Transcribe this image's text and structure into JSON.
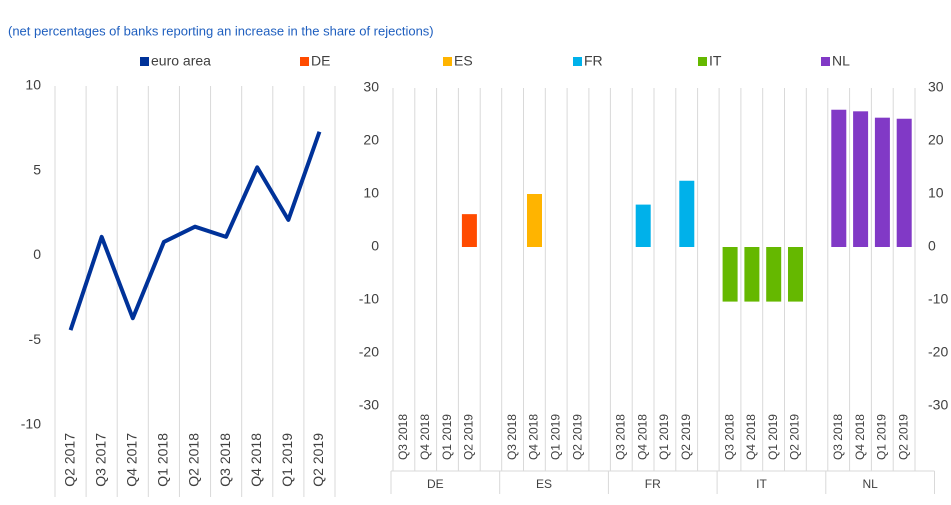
{
  "chart_data": [
    {
      "type": "line",
      "subtitle": "(net percentages of banks reporting an increase in the share of rejections)",
      "categories": [
        "Q2 2017",
        "Q3 2017",
        "Q4 2017",
        "Q1 2018",
        "Q2 2018",
        "Q3 2018",
        "Q4 2018",
        "Q1 2019",
        "Q2 2019"
      ],
      "series": [
        {
          "name": "euro area",
          "color": "#003299",
          "values": [
            -4.4,
            1.1,
            -3.7,
            0.8,
            1.7,
            1.1,
            5.2,
            2.1,
            7.3
          ]
        }
      ],
      "ylim": [
        -10,
        10
      ],
      "yticks": [
        -10,
        -5,
        0,
        5,
        10
      ],
      "grid": "x"
    },
    {
      "type": "bar",
      "categories": [
        "Q3 2018",
        "Q4 2018",
        "Q1 2019",
        "Q2 2019"
      ],
      "series": [
        {
          "name": "DE",
          "color": "#ff4b00",
          "values": [
            0,
            0,
            0,
            6.2
          ]
        },
        {
          "name": "ES",
          "color": "#ffb400",
          "values": [
            0,
            10,
            0,
            0
          ]
        },
        {
          "name": "FR",
          "color": "#00b1ea",
          "values": [
            0,
            8,
            0,
            12.5
          ]
        },
        {
          "name": "IT",
          "color": "#65b800",
          "values": [
            -10.3,
            -10.3,
            -10.3,
            -10.3
          ]
        },
        {
          "name": "NL",
          "color": "#8139c6",
          "values": [
            25.9,
            25.6,
            24.4,
            24.2
          ]
        }
      ],
      "ylim": [
        -30,
        30
      ],
      "yticks": [
        -30,
        -20,
        -10,
        0,
        10,
        20,
        30
      ],
      "y2lim": [
        -30,
        30
      ],
      "y2ticks": [
        -30,
        -20,
        -10,
        0,
        10,
        20,
        30
      ],
      "grid": "x"
    }
  ]
}
